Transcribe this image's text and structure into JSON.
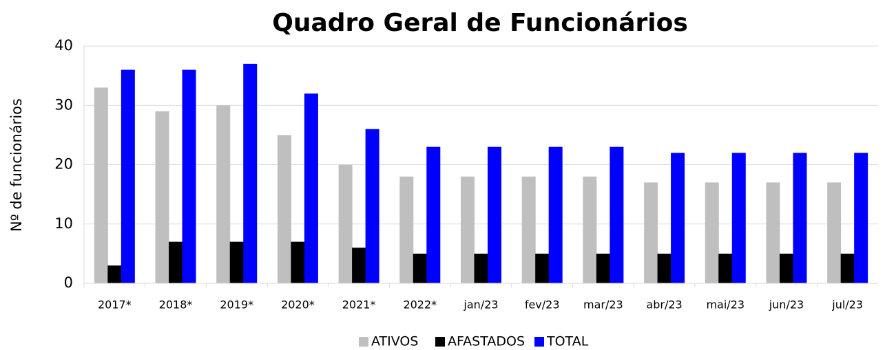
{
  "chart_data": {
    "type": "bar",
    "title": "Quadro Geral de Funcionários",
    "y_label": "Nº de funcionários",
    "categories": [
      "2017*",
      "2018*",
      "2019*",
      "2020*",
      "2021*",
      "2022*",
      "jan/23",
      "fev/23",
      "mar/23",
      "abr/23",
      "mai/23",
      "jun/23",
      "jul/23"
    ],
    "series": [
      {
        "name": "ATIVOS",
        "color": "#bfbfbf",
        "values": [
          33,
          29,
          30,
          25,
          20,
          18,
          18,
          18,
          18,
          17,
          17,
          17,
          17
        ]
      },
      {
        "name": "AFASTADOS",
        "color": "#000000",
        "values": [
          3,
          7,
          7,
          7,
          6,
          5,
          5,
          5,
          5,
          5,
          5,
          5,
          5
        ]
      },
      {
        "name": "TOTAL",
        "color": "#0000ff",
        "values": [
          36,
          36,
          37,
          32,
          26,
          23,
          23,
          23,
          23,
          22,
          22,
          22,
          22
        ]
      }
    ],
    "ylim": [
      0,
      40
    ],
    "yticks": [
      0,
      10,
      20,
      30,
      40
    ],
    "grid": true,
    "legend": "bottom"
  }
}
